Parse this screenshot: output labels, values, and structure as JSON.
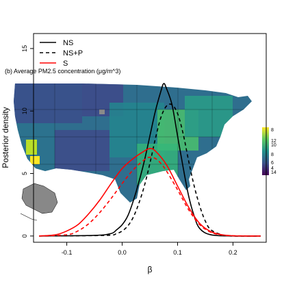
{
  "chart_data": {
    "type": "line",
    "xlabel": "β",
    "ylabel": "Posterior density",
    "xlim": [
      -0.16,
      0.26
    ],
    "ylim": [
      -0.5,
      16.2
    ],
    "x_ticks": [
      -0.1,
      0.0,
      0.1,
      0.2
    ],
    "x_tick_labels": [
      "-0.1",
      "0.0",
      "0.1",
      "0.2"
    ],
    "y_ticks": [
      0,
      5,
      10,
      15
    ],
    "y_tick_labels": [
      "0",
      "5",
      "10",
      "15"
    ],
    "legend_position": "top-left",
    "series": [
      {
        "name": "NS",
        "color": "#000000",
        "dash": "solid",
        "x": [
          -0.15,
          -0.05,
          -0.02,
          -0.01,
          0.0,
          0.01,
          0.02,
          0.03,
          0.04,
          0.05,
          0.06,
          0.07,
          0.075,
          0.08,
          0.09,
          0.1,
          0.11,
          0.12,
          0.13,
          0.14,
          0.16,
          0.2,
          0.25
        ],
        "y": [
          0,
          0.05,
          0.2,
          0.5,
          0.9,
          1.6,
          2.8,
          4.3,
          6.0,
          8.0,
          10.0,
          11.6,
          12.2,
          11.8,
          10.5,
          8.0,
          5.5,
          3.2,
          1.6,
          0.6,
          0.1,
          0,
          0
        ]
      },
      {
        "name": "NS+P",
        "color": "#000000",
        "dash": "dashed",
        "x": [
          -0.15,
          -0.03,
          -0.01,
          0.0,
          0.01,
          0.02,
          0.03,
          0.04,
          0.05,
          0.06,
          0.07,
          0.08,
          0.09,
          0.1,
          0.11,
          0.12,
          0.13,
          0.14,
          0.15,
          0.16,
          0.18,
          0.2,
          0.25
        ],
        "y": [
          0,
          0.05,
          0.2,
          0.4,
          0.8,
          1.5,
          2.6,
          4.0,
          5.8,
          7.8,
          9.5,
          10.4,
          10.5,
          9.8,
          8.2,
          6.0,
          4.0,
          2.4,
          1.2,
          0.5,
          0.1,
          0,
          0
        ]
      },
      {
        "name": "S",
        "color": "#ff0000",
        "dash": "solid",
        "x": [
          -0.15,
          -0.12,
          -0.1,
          -0.08,
          -0.06,
          -0.04,
          -0.02,
          0.0,
          0.02,
          0.04,
          0.05,
          0.06,
          0.08,
          0.1,
          0.12,
          0.14,
          0.16,
          0.18,
          0.2,
          0.22,
          0.25
        ],
        "y": [
          0,
          0.1,
          0.4,
          0.9,
          1.8,
          2.9,
          4.2,
          5.4,
          6.2,
          6.8,
          7.0,
          6.8,
          5.7,
          4.0,
          2.3,
          1.0,
          0.35,
          0.1,
          0.02,
          0,
          0
        ]
      },
      {
        "name": "",
        "color": "#ff0000",
        "dash": "dashed",
        "x": [
          -0.15,
          -0.1,
          -0.08,
          -0.06,
          -0.04,
          -0.02,
          0.0,
          0.02,
          0.04,
          0.05,
          0.06,
          0.07,
          0.08,
          0.1,
          0.12,
          0.14,
          0.16,
          0.18,
          0.2,
          0.25
        ],
        "y": [
          0,
          0.1,
          0.4,
          1.0,
          1.9,
          3.0,
          4.2,
          5.3,
          6.1,
          6.3,
          6.2,
          5.8,
          5.2,
          3.7,
          2.1,
          0.9,
          0.3,
          0.08,
          0.02,
          0
        ]
      }
    ]
  },
  "overlay": {
    "title": "(b) Average PM2.5 concentration (μg/m^3)",
    "colorbar_labels": [
      "8",
      "12",
      "10",
      "8",
      "6",
      "4",
      "14"
    ]
  }
}
